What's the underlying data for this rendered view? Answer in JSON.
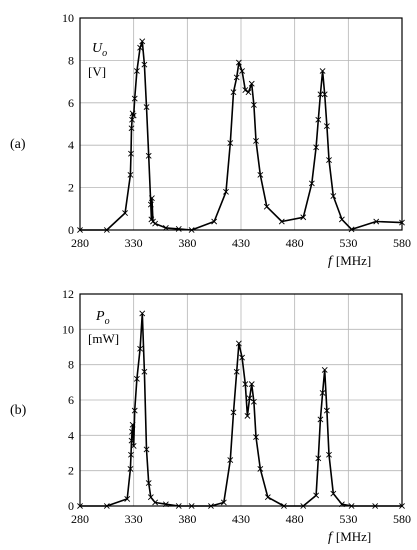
{
  "chart_data": [
    {
      "type": "line",
      "panel_label": "(a)",
      "ylabel_symbol": "U",
      "ylabel_subscript": "o",
      "ylabel_unit": "[V]",
      "xlabel_symbol": "f",
      "xlabel_unit": "[MHz]",
      "xlim": [
        280,
        580
      ],
      "ylim": [
        0,
        10
      ],
      "xticks": [
        280,
        330,
        380,
        430,
        480,
        530,
        580
      ],
      "yticks": [
        0,
        2,
        4,
        6,
        8,
        10
      ],
      "grid": true,
      "marker": "x",
      "series": [
        {
          "x": [
            280,
            305,
            322,
            327,
            327.5,
            328,
            328.5,
            329,
            330,
            331,
            333,
            336,
            338,
            340,
            342,
            344,
            346,
            346.5,
            347,
            348,
            350,
            360,
            372,
            384,
            405,
            416,
            420,
            423,
            426,
            428,
            431,
            434,
            437,
            440,
            442,
            444,
            448,
            454,
            468,
            488,
            496,
            500,
            502,
            504,
            506,
            508,
            510,
            512,
            516,
            524,
            533,
            556,
            580
          ],
          "y": [
            0,
            0,
            0.8,
            2.6,
            3.6,
            4.8,
            5.2,
            5.5,
            5.4,
            6.2,
            7.5,
            8.6,
            8.9,
            7.8,
            5.8,
            3.5,
            1.2,
            0.5,
            1.5,
            0.4,
            0.3,
            0.1,
            0.05,
            0,
            0.4,
            1.8,
            4.1,
            6.5,
            7.2,
            7.9,
            7.5,
            6.6,
            6.5,
            6.9,
            5.9,
            4.2,
            2.6,
            1.1,
            0.4,
            0.6,
            2.2,
            3.9,
            5.2,
            6.4,
            7.5,
            6.4,
            4.9,
            3.3,
            1.6,
            0.5,
            0.03,
            0.4,
            0.35
          ]
        }
      ]
    },
    {
      "type": "line",
      "panel_label": "(b)",
      "ylabel_symbol": "P",
      "ylabel_subscript": "o",
      "ylabel_unit": "[mW]",
      "xlabel_symbol": "f",
      "xlabel_unit": "[MHz]",
      "xlim": [
        280,
        580
      ],
      "ylim": [
        0,
        12
      ],
      "xticks": [
        280,
        330,
        380,
        430,
        480,
        530,
        580
      ],
      "yticks": [
        0,
        2,
        4,
        6,
        8,
        10,
        12
      ],
      "grid": true,
      "marker": "x",
      "series": [
        {
          "x": [
            280,
            305,
            324,
            327,
            327.5,
            328,
            328.5,
            329,
            330,
            331,
            333,
            336,
            338,
            340,
            342,
            344,
            346,
            350,
            360,
            372,
            384,
            402,
            414,
            420,
            423,
            426,
            428,
            431,
            434,
            436,
            438,
            440,
            442,
            444,
            448,
            455,
            470,
            488,
            500,
            502,
            504,
            506,
            508,
            510,
            512,
            516,
            524,
            533,
            555,
            580
          ],
          "y": [
            0,
            0,
            0.4,
            2.1,
            2.9,
            3.7,
            4.2,
            4.6,
            3.4,
            5.4,
            7.2,
            8.9,
            10.9,
            7.6,
            3.2,
            1.3,
            0.5,
            0.2,
            0.1,
            0,
            0,
            0,
            0.2,
            2.6,
            5.3,
            7.6,
            9.2,
            8.4,
            6.9,
            5.1,
            6.1,
            6.9,
            5.9,
            3.9,
            2.1,
            0.5,
            0,
            0,
            0.6,
            2.7,
            4.9,
            6.4,
            7.7,
            5.4,
            2.9,
            0.7,
            0.1,
            0,
            0,
            0
          ]
        }
      ]
    }
  ]
}
